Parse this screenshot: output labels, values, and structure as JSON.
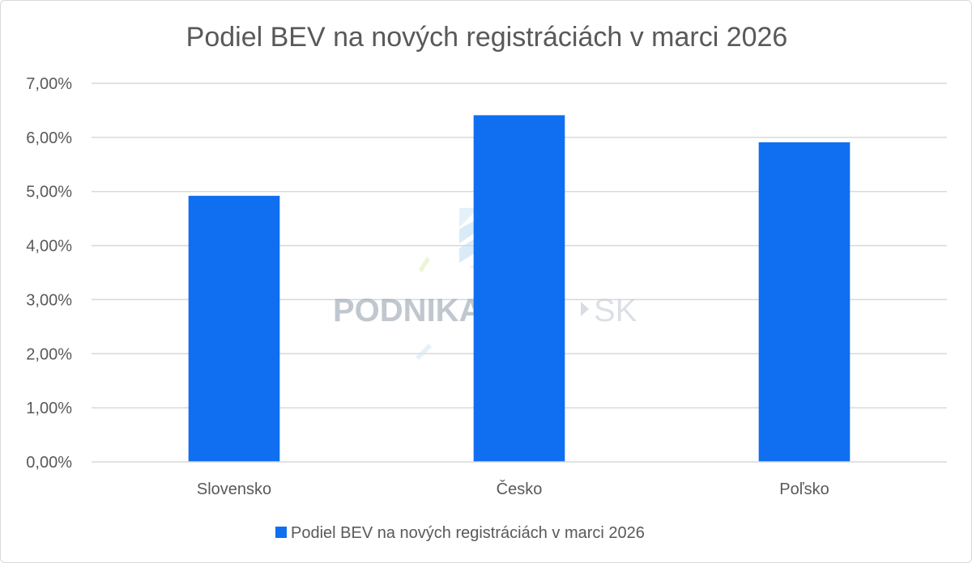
{
  "chart_data": {
    "type": "bar",
    "title": "Podiel BEV na nových registráciách v marci 2026",
    "categories": [
      "Slovensko",
      "Česko",
      "Poľsko"
    ],
    "series": [
      {
        "name": "Podiel BEV na nových registráciách v marci 2026",
        "values": [
          4.92,
          6.41,
          5.91
        ],
        "color": "#0f6ff0"
      }
    ],
    "ylim": [
      0,
      7
    ],
    "yticks": [
      0,
      1,
      2,
      3,
      4,
      5,
      6,
      7
    ],
    "ytick_labels": [
      "0,00%",
      "1,00%",
      "2,00%",
      "3,00%",
      "4,00%",
      "5,00%",
      "6,00%",
      "7,00%"
    ],
    "xlabel": "",
    "ylabel": "",
    "grid": true,
    "legend": "bottom"
  },
  "watermark": {
    "brand": "PODNIKAJTE",
    "suffix": "SK"
  },
  "colors": {
    "bar": "#0f6ff0",
    "grid": "#d9d9d9",
    "text": "#595959"
  }
}
